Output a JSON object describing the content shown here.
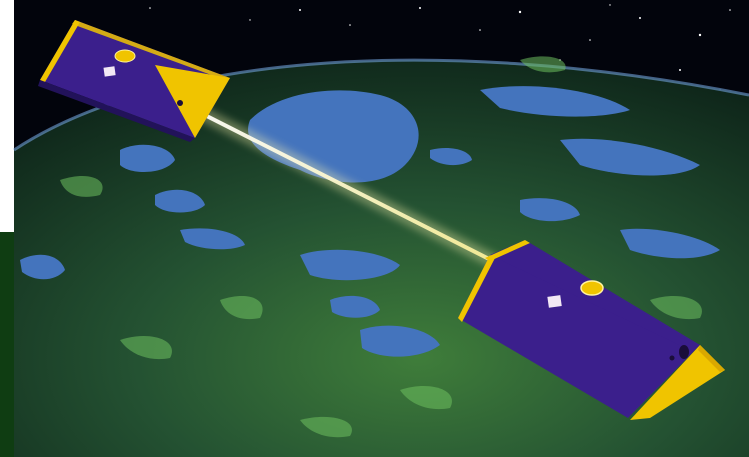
{
  "image": {
    "subject": "two-satellites-over-earth",
    "colors": {
      "space": "#02040c",
      "ocean": "#3a6bb0",
      "land_dark": "#12331f",
      "land_mid": "#2f6a3a",
      "land_highlight": "#79c76b",
      "satellite_body": "#3b1f8c",
      "satellite_face": "#f0c400",
      "beam": "#fff7b0",
      "panel": "#0f3d12"
    },
    "icons": [
      "satellite-left-icon",
      "satellite-right-icon",
      "laser-beam-icon"
    ]
  }
}
